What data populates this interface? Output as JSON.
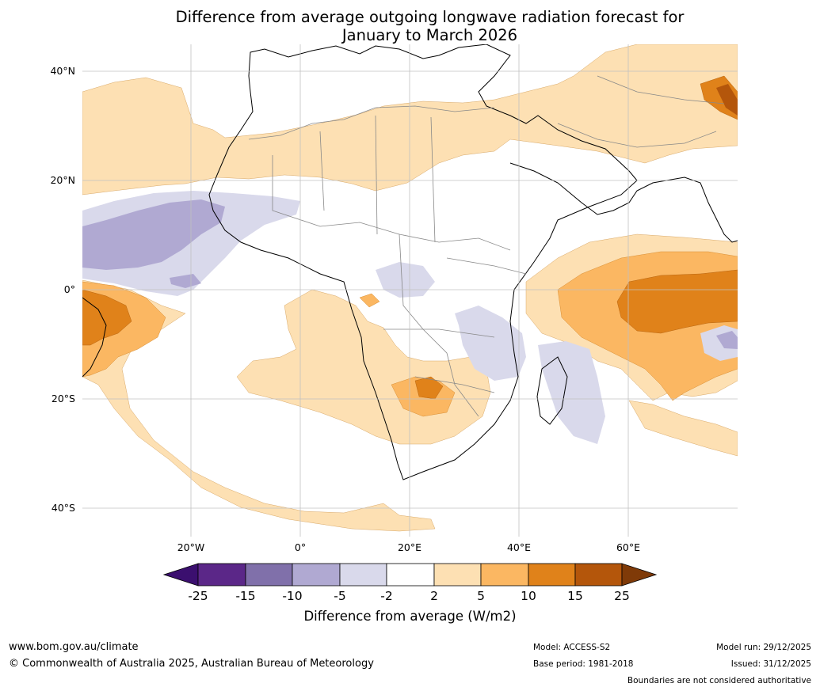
{
  "title": {
    "line1": "Difference from average outgoing longwave radiation forecast for",
    "line2": "January to March 2026"
  },
  "map": {
    "lat_labels": [
      "40°N",
      "20°N",
      "0°",
      "20°S",
      "40°S"
    ],
    "lon_labels": [
      "20°W",
      "0°",
      "20°E",
      "40°E",
      "60°E"
    ]
  },
  "legend": {
    "ticks": [
      "-25",
      "-15",
      "-10",
      "-5",
      "-2",
      "2",
      "5",
      "10",
      "15",
      "25"
    ],
    "colors": [
      "#3b0f6f",
      "#5b2788",
      "#8070aa",
      "#b0a9d2",
      "#d9d9eb",
      "#ffffff",
      "#fde0b3",
      "#fbb762",
      "#e0821a",
      "#b4560b",
      "#7f3a08"
    ],
    "label": "Difference from average (W/m2)"
  },
  "footer": {
    "website": "www.bom.gov.au/climate",
    "copyright": "© Commonwealth of Australia 2025, Australian Bureau of Meteorology",
    "model": "Model: ACCESS-S2",
    "base_period": "Base period: 1981-2018",
    "model_run": "Model run: 29/12/2025",
    "issued": "Issued: 31/12/2025",
    "disclaimer": "Boundaries are not considered authoritative"
  }
}
